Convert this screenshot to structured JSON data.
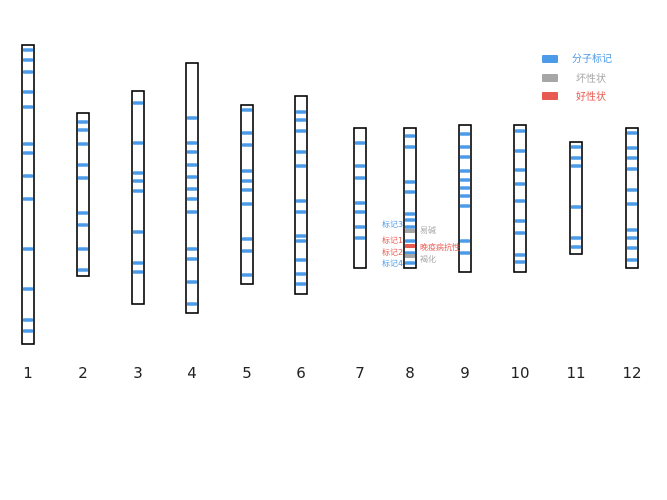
{
  "legend": {
    "items": [
      {
        "label": "分子标记",
        "color": "#4c9be8"
      },
      {
        "label": "坏性状",
        "color": "#a6a6a6"
      },
      {
        "label": "好性状",
        "color": "#e85a50"
      }
    ]
  },
  "colors": {
    "marker": "#4c9be8",
    "bad_trait": "#a6a6a6",
    "good_trait": "#e85a50",
    "outline": "#000000"
  },
  "chromosomes": [
    {
      "label": "1"
    },
    {
      "label": "2"
    },
    {
      "label": "3"
    },
    {
      "label": "4"
    },
    {
      "label": "5"
    },
    {
      "label": "6"
    },
    {
      "label": "7"
    },
    {
      "label": "8"
    },
    {
      "label": "9"
    },
    {
      "label": "10"
    },
    {
      "label": "11"
    },
    {
      "label": "12"
    }
  ],
  "annotations": {
    "markers": [
      {
        "label": "标记3",
        "color": "#4c9be8"
      },
      {
        "label": "标记1",
        "color": "#e85a50"
      },
      {
        "label": "标记2",
        "color": "#e85a50"
      },
      {
        "label": "标记4",
        "color": "#4c9be8"
      }
    ],
    "traits": [
      {
        "label": "易碱",
        "color": "#a6a6a6"
      },
      {
        "label": "晚疫病抗性",
        "color": "#e85a50"
      },
      {
        "label": "褐化",
        "color": "#a6a6a6"
      }
    ]
  }
}
